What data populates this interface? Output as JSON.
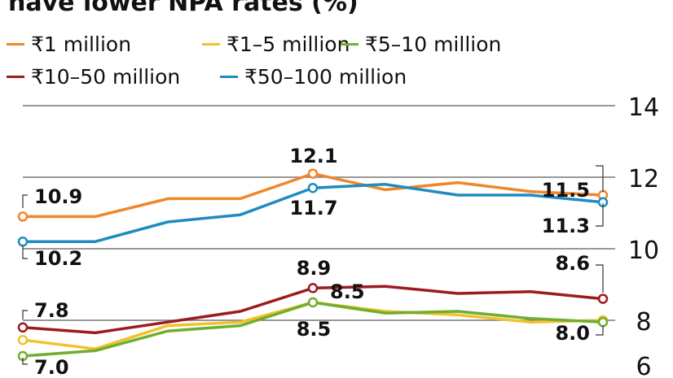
{
  "chart_data": {
    "type": "line",
    "title": "have lower NPA rates (%)",
    "x": [
      1,
      2,
      3,
      4,
      5,
      6,
      7,
      8,
      9
    ],
    "ylim": [
      6,
      14
    ],
    "yticks": [
      6,
      8,
      10,
      12,
      14
    ],
    "grid": true,
    "legend_placement": "top-left",
    "series": [
      {
        "name": "₹1 million",
        "color": "#f0862a",
        "values": [
          10.9,
          10.9,
          11.4,
          11.4,
          12.1,
          11.65,
          11.85,
          11.6,
          11.5
        ]
      },
      {
        "name": "₹1–5 million",
        "color": "#f3c12b",
        "values": [
          7.45,
          7.2,
          7.85,
          7.95,
          8.5,
          8.25,
          8.15,
          7.95,
          8.0
        ]
      },
      {
        "name": "₹5–10 million",
        "color": "#6fae2f",
        "values": [
          7.0,
          7.15,
          7.7,
          7.85,
          8.5,
          8.2,
          8.25,
          8.05,
          7.95
        ]
      },
      {
        "name": "₹10–50 million",
        "color": "#9b1b1f",
        "values": [
          7.8,
          7.65,
          7.95,
          8.25,
          8.9,
          8.95,
          8.75,
          8.8,
          8.6
        ]
      },
      {
        "name": "₹50–100 million",
        "color": "#1f8bbf",
        "values": [
          10.2,
          10.2,
          10.75,
          10.95,
          11.7,
          11.8,
          11.5,
          11.5,
          11.3
        ]
      }
    ],
    "annotations": [
      {
        "text": "10.9",
        "series": 0,
        "index": 0
      },
      {
        "text": "10.2",
        "series": 4,
        "index": 0
      },
      {
        "text": "7.8",
        "series": 3,
        "index": 0
      },
      {
        "text": "7.0",
        "series": 2,
        "index": 0
      },
      {
        "text": "12.1",
        "series": 0,
        "index": 4
      },
      {
        "text": "11.7",
        "series": 4,
        "index": 4
      },
      {
        "text": "8.9",
        "series": 3,
        "index": 4
      },
      {
        "text": "8.5",
        "series": 1,
        "index": 4
      },
      {
        "text": "8.5",
        "series": 2,
        "index": 4
      },
      {
        "text": "11.5",
        "series": 0,
        "index": 8
      },
      {
        "text": "11.3",
        "series": 4,
        "index": 8
      },
      {
        "text": "8.6",
        "series": 3,
        "index": 8
      },
      {
        "text": "8.0",
        "series": 2,
        "index": 8
      }
    ]
  }
}
